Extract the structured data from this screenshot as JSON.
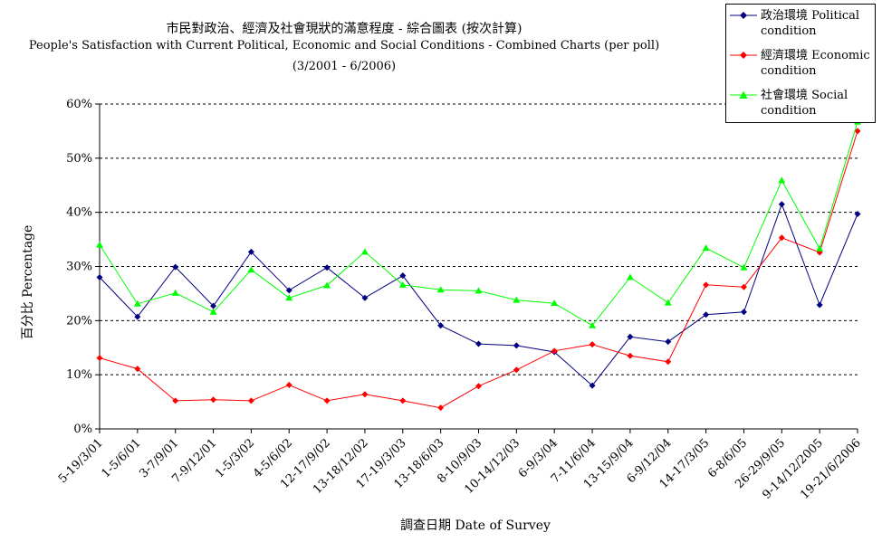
{
  "chart_data": {
    "type": "line",
    "title": "市民對政治、經濟及社會現狀的滿意程度 - 綜合圖表 (按次計算)",
    "subtitle": "People's Satisfaction with Current Political, Economic and Social Conditions - Combined Charts  (per poll)",
    "date_range": "(3/2001 - 6/2006)",
    "xlabel": "調查日期 Date of Survey",
    "ylabel": "百分比 Percentage",
    "ylim": [
      0,
      60
    ],
    "yticks": [
      "0%",
      "10%",
      "20%",
      "30%",
      "40%",
      "50%",
      "60%"
    ],
    "grid": "horizontal dashed",
    "legend_position": "top-right",
    "categories": [
      "5-19/3/01",
      "1-5/6/01",
      "3-7/9/01",
      "7-9/12/01",
      "1-5/3/02",
      "4-5/6/02",
      "12-17/9/02",
      "13-18/12/02",
      "17-19/3/03",
      "13-18/6/03",
      "8-10/9/03",
      "10-14/12/03",
      "6-9/3/04",
      "7-11/6/04",
      "13-15/9/04",
      "6-9/12/04",
      "14-17/3/05",
      "6-8/6/05",
      "26-29/9/05",
      "9-14/12/2005",
      "19-21/6/2006"
    ],
    "x_tick_labels": [
      "5-19/3/01",
      "1-5/6/01",
      "3-7/9/01",
      "7-9/12/01",
      "1-5/3/02",
      "4-5/6/02",
      "12-17/9/02",
      "13-18/12/02",
      "17-19/3/03",
      "13-18/6/03",
      "8-10/9/03",
      "10-14/12/03",
      "6-9/3/04",
      "7-11/6/04",
      "13-15/9/04",
      "6-9/12/04",
      "14-17/3/05",
      "6-8/6/05",
      "26-29/9/05",
      "9-14/12/2005",
      "19-21/6/2006"
    ],
    "series": [
      {
        "name": "政治環境 Political condition",
        "color": "#000080",
        "marker": "diamond",
        "values": [
          28,
          20.7,
          29.9,
          22.7,
          32.7,
          25.6,
          29.8,
          24.2,
          28.3,
          19.1,
          15.7,
          15.4,
          14.2,
          8,
          17,
          16.1,
          21.1,
          21.6,
          41.5,
          22.9,
          39.7
        ]
      },
      {
        "name": "經濟環境 Economic condition",
        "color": "#ff0000",
        "marker": "diamond",
        "values": [
          13.1,
          11.1,
          5.2,
          5.4,
          5.2,
          8.1,
          5.2,
          6.4,
          5.2,
          3.9,
          7.9,
          10.9,
          14.4,
          15.6,
          13.5,
          12.4,
          26.6,
          26.2,
          35.3,
          32.6,
          55
        ]
      },
      {
        "name": "社會環境 Social condition",
        "color": "#00ff00",
        "marker": "triangle",
        "values": [
          34,
          23.1,
          25.1,
          21.6,
          29.4,
          24.2,
          26.5,
          32.7,
          26.6,
          25.7,
          25.5,
          23.8,
          23.2,
          19.1,
          28,
          23.3,
          33.4,
          29.8,
          45.9,
          33.3,
          56.7
        ]
      }
    ]
  }
}
